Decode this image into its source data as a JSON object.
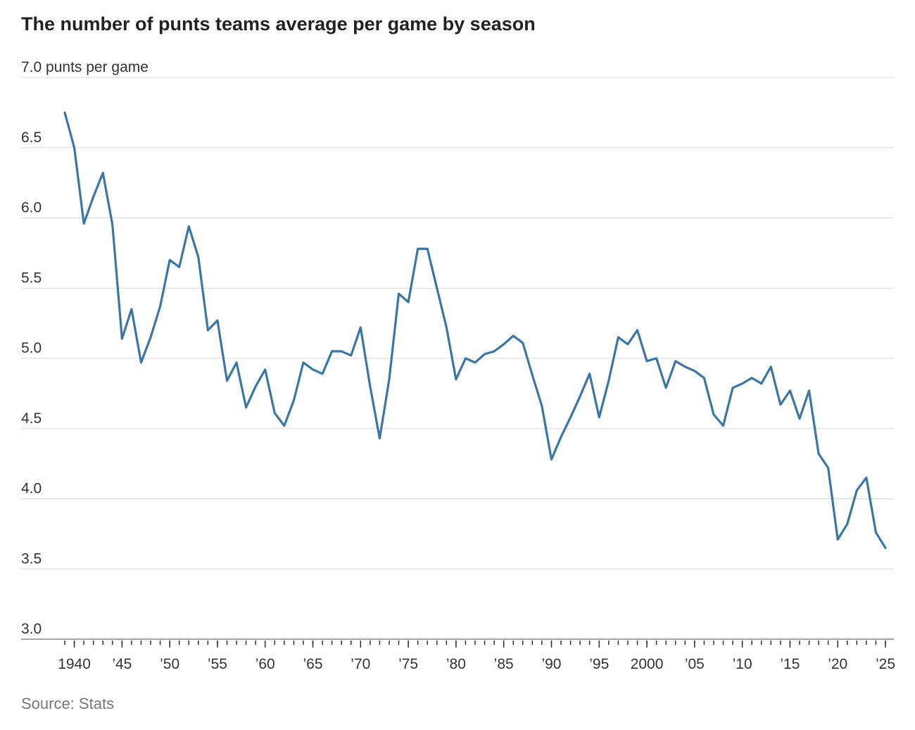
{
  "chart_data": {
    "type": "line",
    "title": "The number of punts teams average per game by season",
    "source": "Source: Stats",
    "x": [
      1939,
      1940,
      1941,
      1942,
      1943,
      1944,
      1945,
      1946,
      1947,
      1948,
      1949,
      1950,
      1951,
      1952,
      1953,
      1954,
      1955,
      1956,
      1957,
      1958,
      1959,
      1960,
      1961,
      1962,
      1963,
      1964,
      1965,
      1966,
      1967,
      1968,
      1969,
      1970,
      1971,
      1972,
      1973,
      1974,
      1975,
      1976,
      1977,
      1978,
      1979,
      1980,
      1981,
      1982,
      1983,
      1984,
      1985,
      1986,
      1987,
      1988,
      1989,
      1990,
      1991,
      1992,
      1993,
      1994,
      1995,
      1996,
      1997,
      1998,
      1999,
      2000,
      2001,
      2002,
      2003,
      2004,
      2005,
      2006,
      2007,
      2008,
      2009,
      2010,
      2011,
      2012,
      2013,
      2014,
      2015,
      2016,
      2017,
      2018,
      2019,
      2020,
      2021,
      2022,
      2023,
      2024,
      2025
    ],
    "series": [
      {
        "color": "#3a76a6",
        "values": [
          6.75,
          6.5,
          5.96,
          6.15,
          6.32,
          5.95,
          5.14,
          5.35,
          4.97,
          5.15,
          5.37,
          5.7,
          5.65,
          5.94,
          5.72,
          5.2,
          5.27,
          4.84,
          4.97,
          4.65,
          4.8,
          4.92,
          4.61,
          4.52,
          4.7,
          4.97,
          4.92,
          4.89,
          5.05,
          5.05,
          5.02,
          5.22,
          4.8,
          4.43,
          4.85,
          5.46,
          5.4,
          5.78,
          5.78,
          5.5,
          5.22,
          4.85,
          5.0,
          4.97,
          5.03,
          5.05,
          5.1,
          5.16,
          5.11,
          4.88,
          4.66,
          4.28,
          4.44,
          4.58,
          4.73,
          4.89,
          4.58,
          4.84,
          5.15,
          5.1,
          5.2,
          4.98,
          5.0,
          4.79,
          4.98,
          4.94,
          4.91,
          4.86,
          4.6,
          4.52,
          4.79,
          4.82,
          4.86,
          4.82,
          4.94,
          4.67,
          4.77,
          4.57,
          4.77,
          4.32,
          4.22,
          3.71,
          3.82,
          4.06,
          4.15,
          3.76,
          3.65
        ]
      }
    ],
    "xlim": [
      1939,
      2025
    ],
    "xticks": [
      {
        "value": 1940,
        "label": "1940"
      },
      {
        "value": 1945,
        "label": "’45"
      },
      {
        "value": 1950,
        "label": "’50"
      },
      {
        "value": 1955,
        "label": "’55"
      },
      {
        "value": 1960,
        "label": "’60"
      },
      {
        "value": 1965,
        "label": "’65"
      },
      {
        "value": 1970,
        "label": "’70"
      },
      {
        "value": 1975,
        "label": "’75"
      },
      {
        "value": 1980,
        "label": "’80"
      },
      {
        "value": 1985,
        "label": "’85"
      },
      {
        "value": 1990,
        "label": "’90"
      },
      {
        "value": 1995,
        "label": "’95"
      },
      {
        "value": 2000,
        "label": "2000"
      },
      {
        "value": 2005,
        "label": "’05"
      },
      {
        "value": 2010,
        "label": "’10"
      },
      {
        "value": 2015,
        "label": "’15"
      },
      {
        "value": 2020,
        "label": "’20"
      },
      {
        "value": 2025,
        "label": "’25"
      }
    ],
    "ylim": [
      3.0,
      7.0
    ],
    "yticks": [
      {
        "value": 3,
        "label": "3.0"
      },
      3.5,
      {
        "value": 4,
        "label": "4.0"
      },
      4.5,
      {
        "value": 5,
        "label": "5.0"
      },
      5.5,
      {
        "value": 6,
        "label": "6.0"
      },
      6.5,
      {
        "value": 7,
        "label": "7.0 punts per game"
      }
    ],
    "grid": true
  }
}
